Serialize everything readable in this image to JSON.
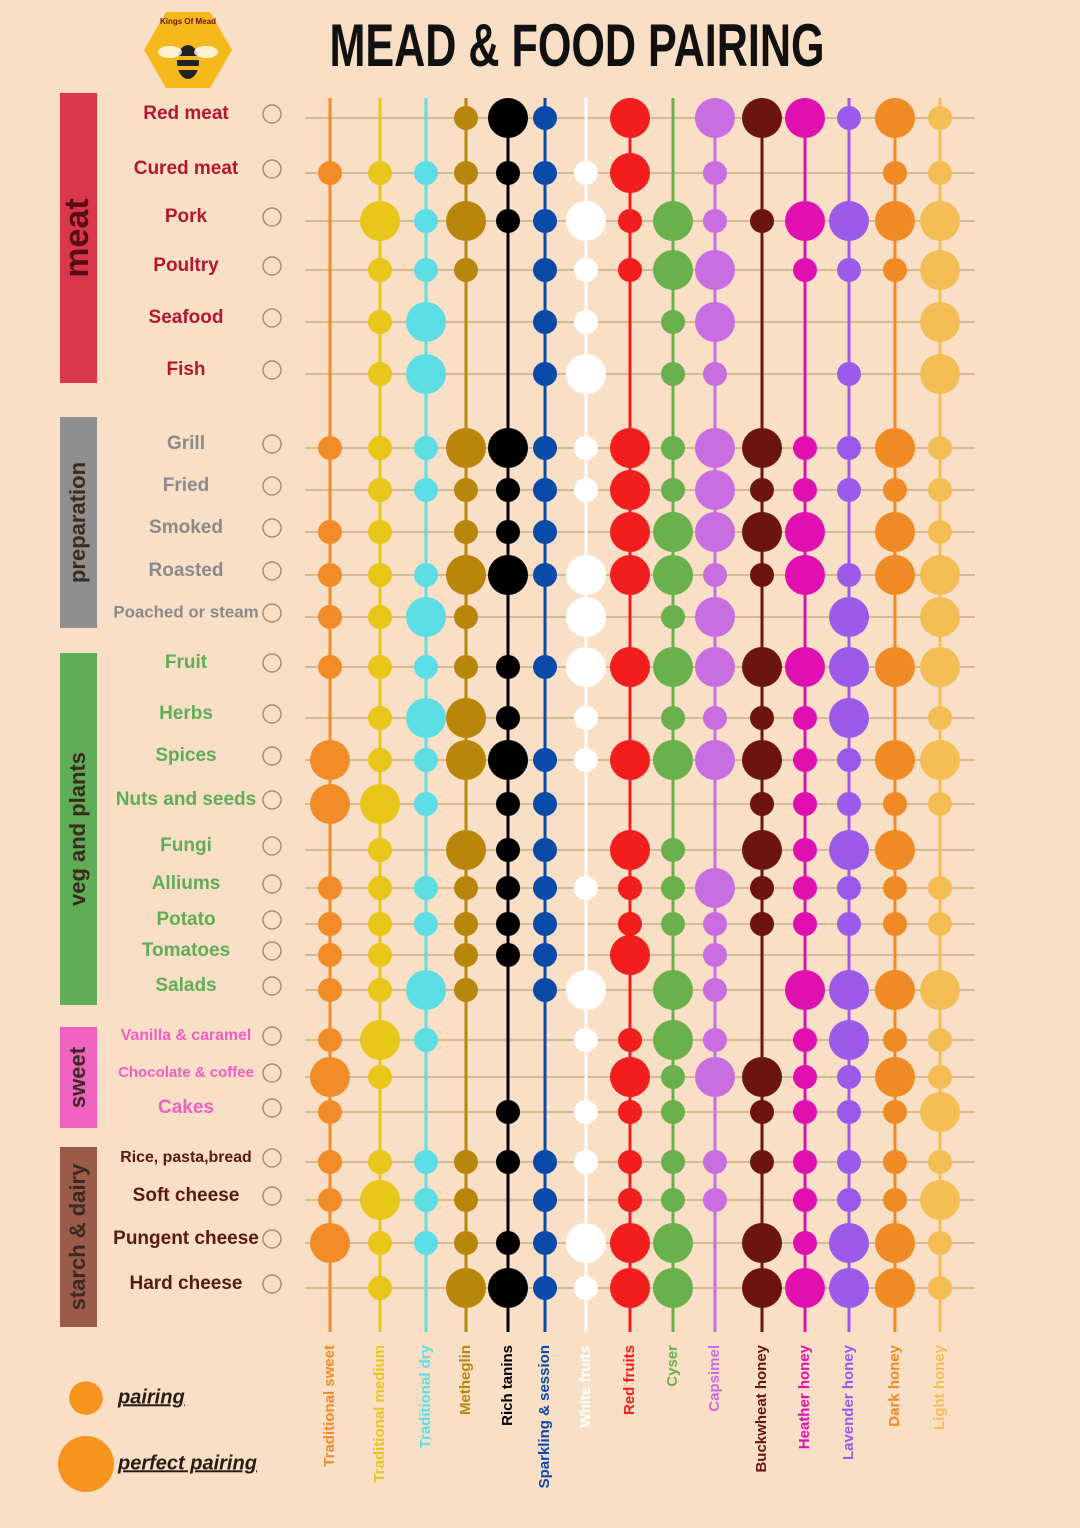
{
  "logo": "Kings Of Mead",
  "chart_data": {
    "type": "dot-matrix",
    "title": "MEAD & FOOD PAIRING",
    "groups": [
      {
        "name": "meat",
        "color": "#d9374b",
        "label_color": "#b3182b",
        "rows": [
          "Red meat",
          "Cured meat",
          "Pork",
          "Poultry",
          "Seafood",
          "Fish"
        ]
      },
      {
        "name": "preparation",
        "color": "#8f8f8f",
        "label_color": "#8a8a8a",
        "rows": [
          "Grill",
          "Fried",
          "Smoked",
          "Roasted",
          "Poached or steam"
        ]
      },
      {
        "name": "veg and plants",
        "color": "#5fad56",
        "label_color": "#5fad56",
        "rows": [
          "Fruit",
          "Herbs",
          "Spices",
          "Nuts and seeds",
          "Fungi",
          "Alliums",
          "Potato",
          "Tomatoes",
          "Salads"
        ]
      },
      {
        "name": "sweet",
        "color": "#f062c0",
        "label_color": "#f05fc3",
        "rows": [
          "Vanilla & caramel",
          "Chocolate & coffee",
          "Cakes"
        ]
      },
      {
        "name": "starch & dairy",
        "color": "#9b5b4a",
        "label_color": "#5a1a0f",
        "rows": [
          "Rice, pasta,bread",
          "Soft cheese",
          "Pungent cheese",
          "Hard cheese"
        ]
      }
    ],
    "columns": [
      {
        "name": "Traditional sweet",
        "color": "#f28c28"
      },
      {
        "name": "Traditional medium",
        "color": "#e8c61a"
      },
      {
        "name": "Traditional dry",
        "color": "#5ddde4"
      },
      {
        "name": "Metheglin",
        "color": "#b8860b"
      },
      {
        "name": "Rich tanins",
        "color": "#000000"
      },
      {
        "name": "Sparkling & session",
        "color": "#0a4aa8"
      },
      {
        "name": "White fruits",
        "color": "#ffffff"
      },
      {
        "name": "Red fruits",
        "color": "#f21d1d"
      },
      {
        "name": "Cyser",
        "color": "#6ab04c"
      },
      {
        "name": "Capsimel",
        "color": "#c86ee0"
      },
      {
        "name": "Buckwheat honey",
        "color": "#6b1410"
      },
      {
        "name": "Heather honey",
        "color": "#e010b0"
      },
      {
        "name": "Lavender honey",
        "color": "#9b5be8"
      },
      {
        "name": "Dark honey",
        "color": "#f08a24"
      },
      {
        "name": "Light honey",
        "color": "#f5be55"
      }
    ],
    "values": [
      [
        0,
        0,
        0,
        1,
        2,
        1,
        0,
        2,
        0,
        2,
        2,
        2,
        1,
        2,
        1
      ],
      [
        1,
        1,
        1,
        1,
        1,
        1,
        1,
        2,
        0,
        1,
        0,
        0,
        0,
        1,
        1
      ],
      [
        0,
        2,
        1,
        2,
        1,
        1,
        2,
        1,
        2,
        1,
        1,
        2,
        2,
        2,
        2
      ],
      [
        0,
        1,
        1,
        1,
        0,
        1,
        1,
        1,
        2,
        2,
        0,
        1,
        1,
        1,
        2
      ],
      [
        0,
        1,
        2,
        0,
        0,
        1,
        1,
        0,
        1,
        2,
        0,
        0,
        0,
        0,
        2
      ],
      [
        0,
        1,
        2,
        0,
        0,
        1,
        2,
        0,
        1,
        1,
        0,
        0,
        1,
        0,
        2
      ],
      [
        1,
        1,
        1,
        2,
        2,
        1,
        1,
        2,
        1,
        2,
        2,
        1,
        1,
        2,
        1
      ],
      [
        0,
        1,
        1,
        1,
        1,
        1,
        1,
        2,
        1,
        2,
        1,
        1,
        1,
        1,
        1
      ],
      [
        1,
        1,
        0,
        1,
        1,
        1,
        0,
        2,
        2,
        2,
        2,
        2,
        0,
        2,
        1
      ],
      [
        1,
        1,
        1,
        2,
        2,
        1,
        2,
        2,
        2,
        1,
        1,
        2,
        1,
        2,
        2
      ],
      [
        1,
        1,
        2,
        1,
        0,
        0,
        2,
        0,
        1,
        2,
        0,
        0,
        2,
        0,
        2
      ],
      [
        1,
        1,
        1,
        1,
        1,
        1,
        2,
        2,
        2,
        2,
        2,
        2,
        2,
        2,
        2
      ],
      [
        0,
        1,
        2,
        2,
        1,
        0,
        1,
        0,
        1,
        1,
        1,
        1,
        2,
        0,
        1
      ],
      [
        2,
        1,
        1,
        2,
        2,
        1,
        1,
        2,
        2,
        2,
        2,
        1,
        1,
        2,
        2
      ],
      [
        2,
        2,
        1,
        0,
        1,
        1,
        0,
        0,
        0,
        0,
        1,
        1,
        1,
        1,
        1
      ],
      [
        0,
        1,
        0,
        2,
        1,
        1,
        0,
        2,
        1,
        0,
        2,
        1,
        2,
        2,
        0
      ],
      [
        1,
        1,
        1,
        1,
        1,
        1,
        1,
        1,
        1,
        2,
        1,
        1,
        1,
        1,
        1
      ],
      [
        1,
        1,
        1,
        1,
        1,
        1,
        0,
        1,
        1,
        1,
        1,
        1,
        1,
        1,
        1
      ],
      [
        1,
        1,
        0,
        1,
        1,
        1,
        0,
        2,
        0,
        1,
        0,
        0,
        0,
        0,
        0
      ],
      [
        1,
        1,
        2,
        1,
        0,
        1,
        2,
        0,
        2,
        1,
        0,
        2,
        2,
        2,
        2
      ],
      [
        1,
        2,
        1,
        0,
        0,
        0,
        1,
        1,
        2,
        1,
        0,
        1,
        2,
        1,
        1
      ],
      [
        2,
        1,
        0,
        0,
        0,
        0,
        0,
        2,
        1,
        2,
        2,
        1,
        1,
        2,
        1
      ],
      [
        1,
        0,
        0,
        0,
        1,
        0,
        1,
        1,
        1,
        0,
        1,
        1,
        1,
        1,
        2
      ],
      [
        1,
        1,
        1,
        1,
        1,
        1,
        1,
        1,
        1,
        1,
        1,
        1,
        1,
        1,
        1
      ],
      [
        1,
        2,
        1,
        1,
        0,
        1,
        0,
        1,
        1,
        1,
        0,
        1,
        1,
        1,
        2
      ],
      [
        2,
        1,
        1,
        1,
        1,
        1,
        2,
        2,
        2,
        0,
        2,
        1,
        2,
        2,
        1
      ],
      [
        0,
        1,
        0,
        2,
        2,
        1,
        1,
        2,
        2,
        0,
        2,
        2,
        2,
        2,
        1
      ]
    ],
    "levels": [
      {
        "value": 1,
        "label": "pairing"
      },
      {
        "value": 2,
        "label": "perfect pairing"
      }
    ],
    "legend_color": "#f7941d"
  }
}
